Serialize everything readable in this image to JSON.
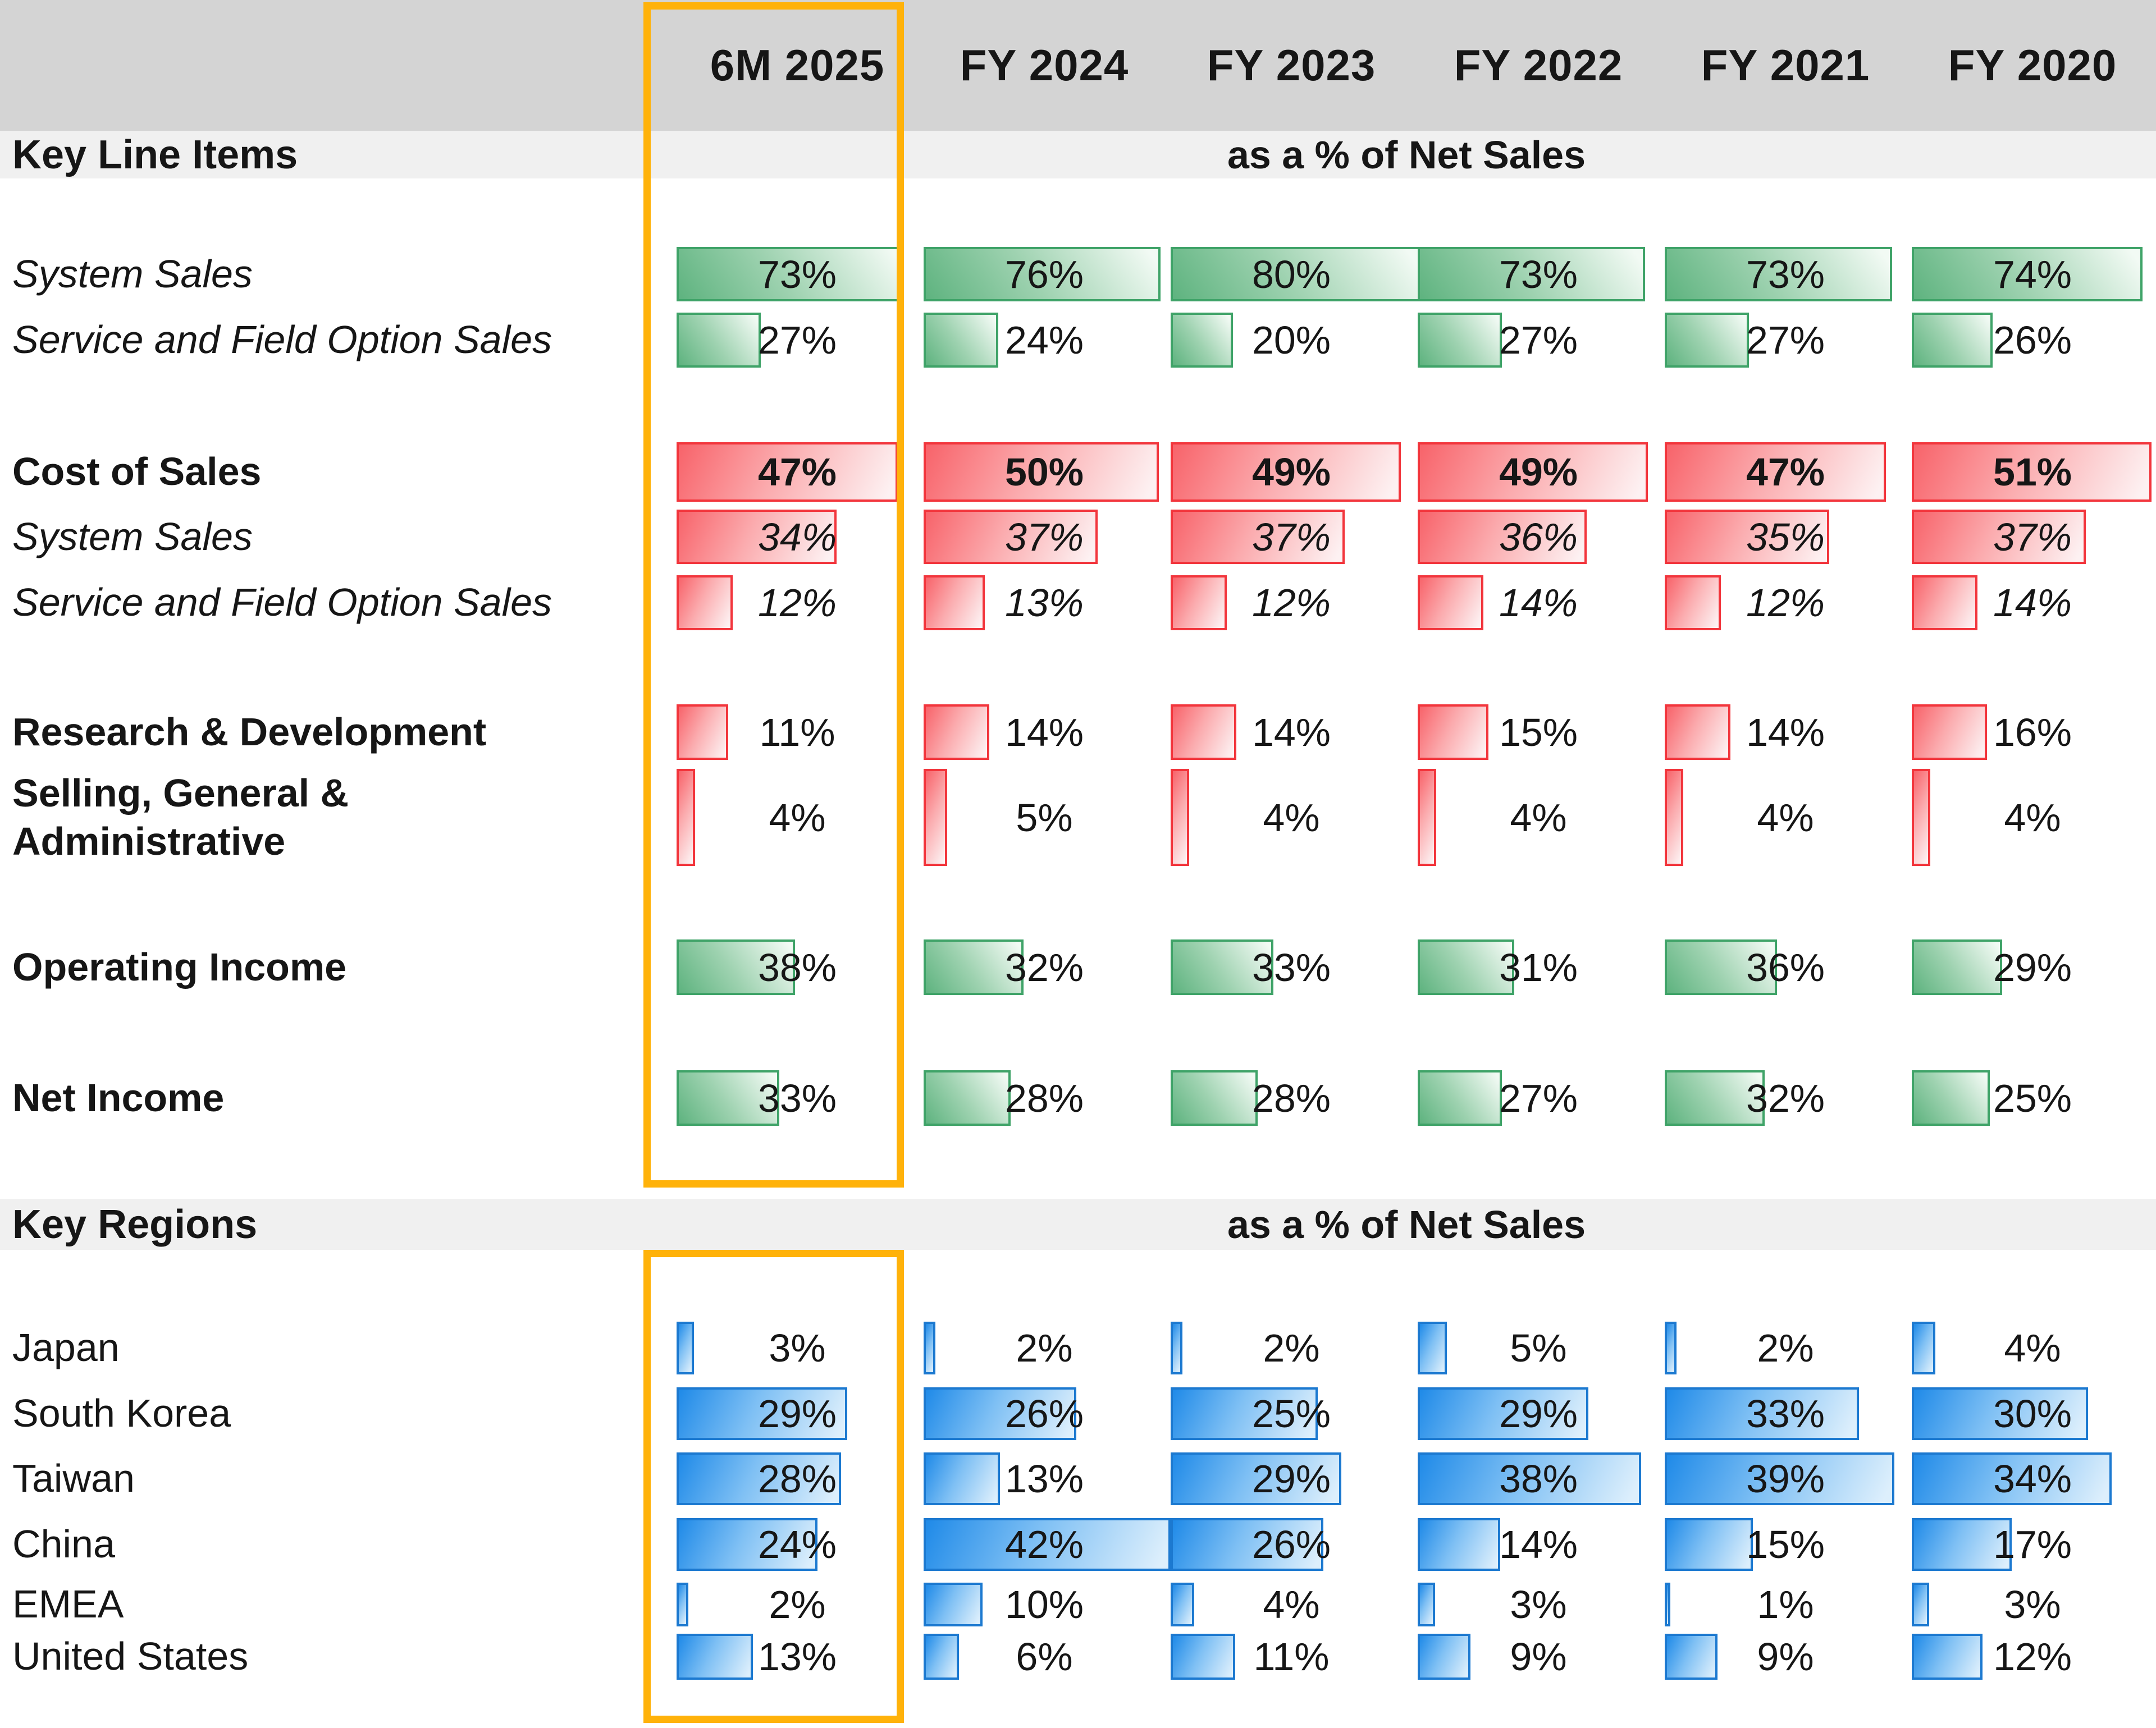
{
  "highlight": {
    "column": "6M 2025",
    "color": "#FFB20A"
  },
  "colors": {
    "header_bg": "#d4d4d4",
    "band_bg": "#f0f0f0",
    "text": "#161616",
    "green": {
      "border": "#3fa368",
      "dark": "#5eb37f",
      "mid": "#9ed2b0",
      "light": "#f2faf4"
    },
    "red": {
      "border": "#f2353c",
      "dark": "#f8636a",
      "mid": "#fbabae",
      "light": "#fdf1f2"
    },
    "blue": {
      "border": "#1c79d0",
      "dark": "#1f8ae8",
      "mid": "#7fc0f4",
      "light": "#ddeffc"
    }
  },
  "chart_data": [
    {
      "type": "bar",
      "orientation": "horizontal",
      "value_format": "percent",
      "title": "Key Line Items",
      "subtitle": "as a % of Net Sales",
      "categories": [
        "6M 2025",
        "FY 2024",
        "FY 2023",
        "FY 2022",
        "FY 2021",
        "FY 2020"
      ],
      "series": [
        {
          "label": "System Sales",
          "label_style": "italic",
          "value_style": "normal",
          "color_group": "green",
          "values": [
            73,
            76,
            80,
            73,
            73,
            74
          ]
        },
        {
          "label": "Service and Field Option Sales",
          "label_style": "italic",
          "value_style": "normal",
          "color_group": "green",
          "values": [
            27,
            24,
            20,
            27,
            27,
            26
          ]
        },
        {
          "label": "Cost of Sales",
          "label_style": "bold",
          "value_style": "bold",
          "color_group": "red",
          "values": [
            47,
            50,
            49,
            49,
            47,
            51
          ]
        },
        {
          "label": "System Sales",
          "label_style": "italic",
          "value_style": "italic",
          "color_group": "red",
          "values": [
            34,
            37,
            37,
            36,
            35,
            37
          ]
        },
        {
          "label": "Service and Field Option Sales",
          "label_style": "italic",
          "value_style": "italic",
          "color_group": "red",
          "values": [
            12,
            13,
            12,
            14,
            12,
            14
          ]
        },
        {
          "label": "Research & Development",
          "label_style": "bold",
          "value_style": "normal",
          "color_group": "red",
          "values": [
            11,
            14,
            14,
            15,
            14,
            16
          ]
        },
        {
          "label": "Selling, General &\nAdministrative",
          "label_style": "bold",
          "value_style": "normal",
          "color_group": "red",
          "values": [
            4,
            5,
            4,
            4,
            4,
            4
          ]
        },
        {
          "label": "Operating Income",
          "label_style": "bold",
          "value_style": "normal",
          "color_group": "green",
          "values": [
            38,
            32,
            33,
            31,
            36,
            29
          ]
        },
        {
          "label": "Net Income",
          "label_style": "bold",
          "value_style": "normal",
          "color_group": "green",
          "values": [
            33,
            28,
            28,
            27,
            32,
            25
          ]
        }
      ]
    },
    {
      "type": "bar",
      "orientation": "horizontal",
      "value_format": "percent",
      "title": "Key Regions",
      "subtitle": "as a % of Net Sales",
      "categories": [
        "6M 2025",
        "FY 2024",
        "FY 2023",
        "FY 2022",
        "FY 2021",
        "FY 2020"
      ],
      "series": [
        {
          "label": "Japan",
          "label_style": "normal",
          "value_style": "normal",
          "color_group": "blue",
          "values": [
            3,
            2,
            2,
            5,
            2,
            4
          ]
        },
        {
          "label": "South Korea",
          "label_style": "normal",
          "value_style": "normal",
          "color_group": "blue",
          "values": [
            29,
            26,
            25,
            29,
            33,
            30
          ]
        },
        {
          "label": "Taiwan",
          "label_style": "normal",
          "value_style": "normal",
          "color_group": "blue",
          "values": [
            28,
            13,
            29,
            38,
            39,
            34
          ]
        },
        {
          "label": "China",
          "label_style": "normal",
          "value_style": "normal",
          "color_group": "blue",
          "values": [
            24,
            42,
            26,
            14,
            15,
            17
          ]
        },
        {
          "label": "EMEA",
          "label_style": "normal",
          "value_style": "normal",
          "color_group": "blue",
          "values": [
            2,
            10,
            4,
            3,
            1,
            3
          ]
        },
        {
          "label": "United States",
          "label_style": "normal",
          "value_style": "normal",
          "color_group": "blue",
          "values": [
            13,
            6,
            11,
            9,
            9,
            12
          ]
        }
      ]
    }
  ]
}
